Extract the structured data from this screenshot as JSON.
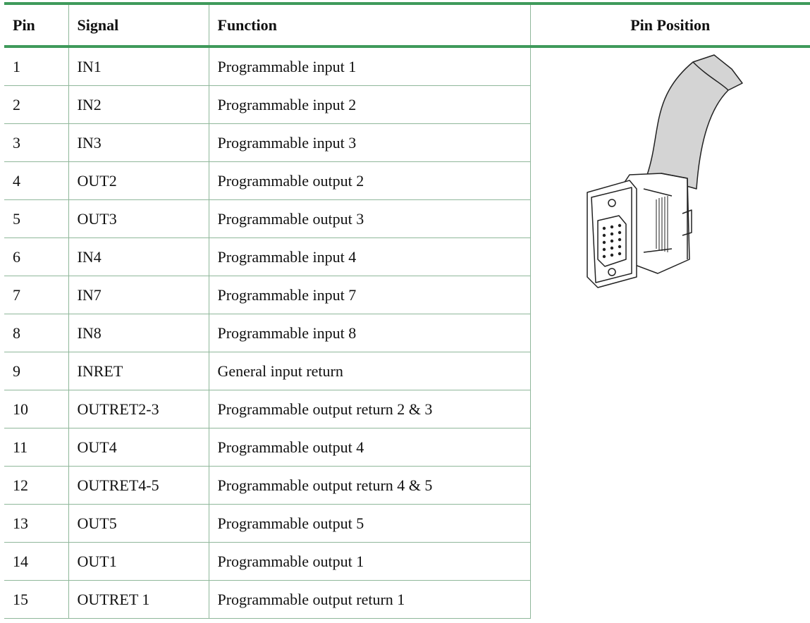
{
  "header": {
    "columns": [
      "Pin",
      "Signal",
      "Function",
      "Pin Position"
    ]
  },
  "table": {
    "rows": [
      [
        "1",
        "IN1",
        "Programmable input 1"
      ],
      [
        "2",
        "IN2",
        "Programmable input 2"
      ],
      [
        "3",
        "IN3",
        "Programmable input 3"
      ],
      [
        "4",
        "OUT2",
        "Programmable output 2"
      ],
      [
        "5",
        "OUT3",
        "Programmable output 3"
      ],
      [
        "6",
        "IN4",
        "Programmable input 4"
      ],
      [
        "7",
        "IN7",
        "Programmable input 7"
      ],
      [
        "8",
        "IN8",
        "Programmable input 8"
      ],
      [
        "9",
        "INRET",
        "General input return"
      ],
      [
        "10",
        "OUTRET2-3",
        "Programmable output return 2 & 3"
      ],
      [
        "11",
        "OUT4",
        "Programmable output 4"
      ],
      [
        "12",
        "OUTRET4-5",
        "Programmable output return 4 & 5"
      ],
      [
        "13",
        "OUT5",
        "Programmable output 5"
      ],
      [
        "14",
        "OUT1",
        "Programmable output 1"
      ],
      [
        "15",
        "OUTRET 1",
        "Programmable output return 1"
      ]
    ]
  }
}
